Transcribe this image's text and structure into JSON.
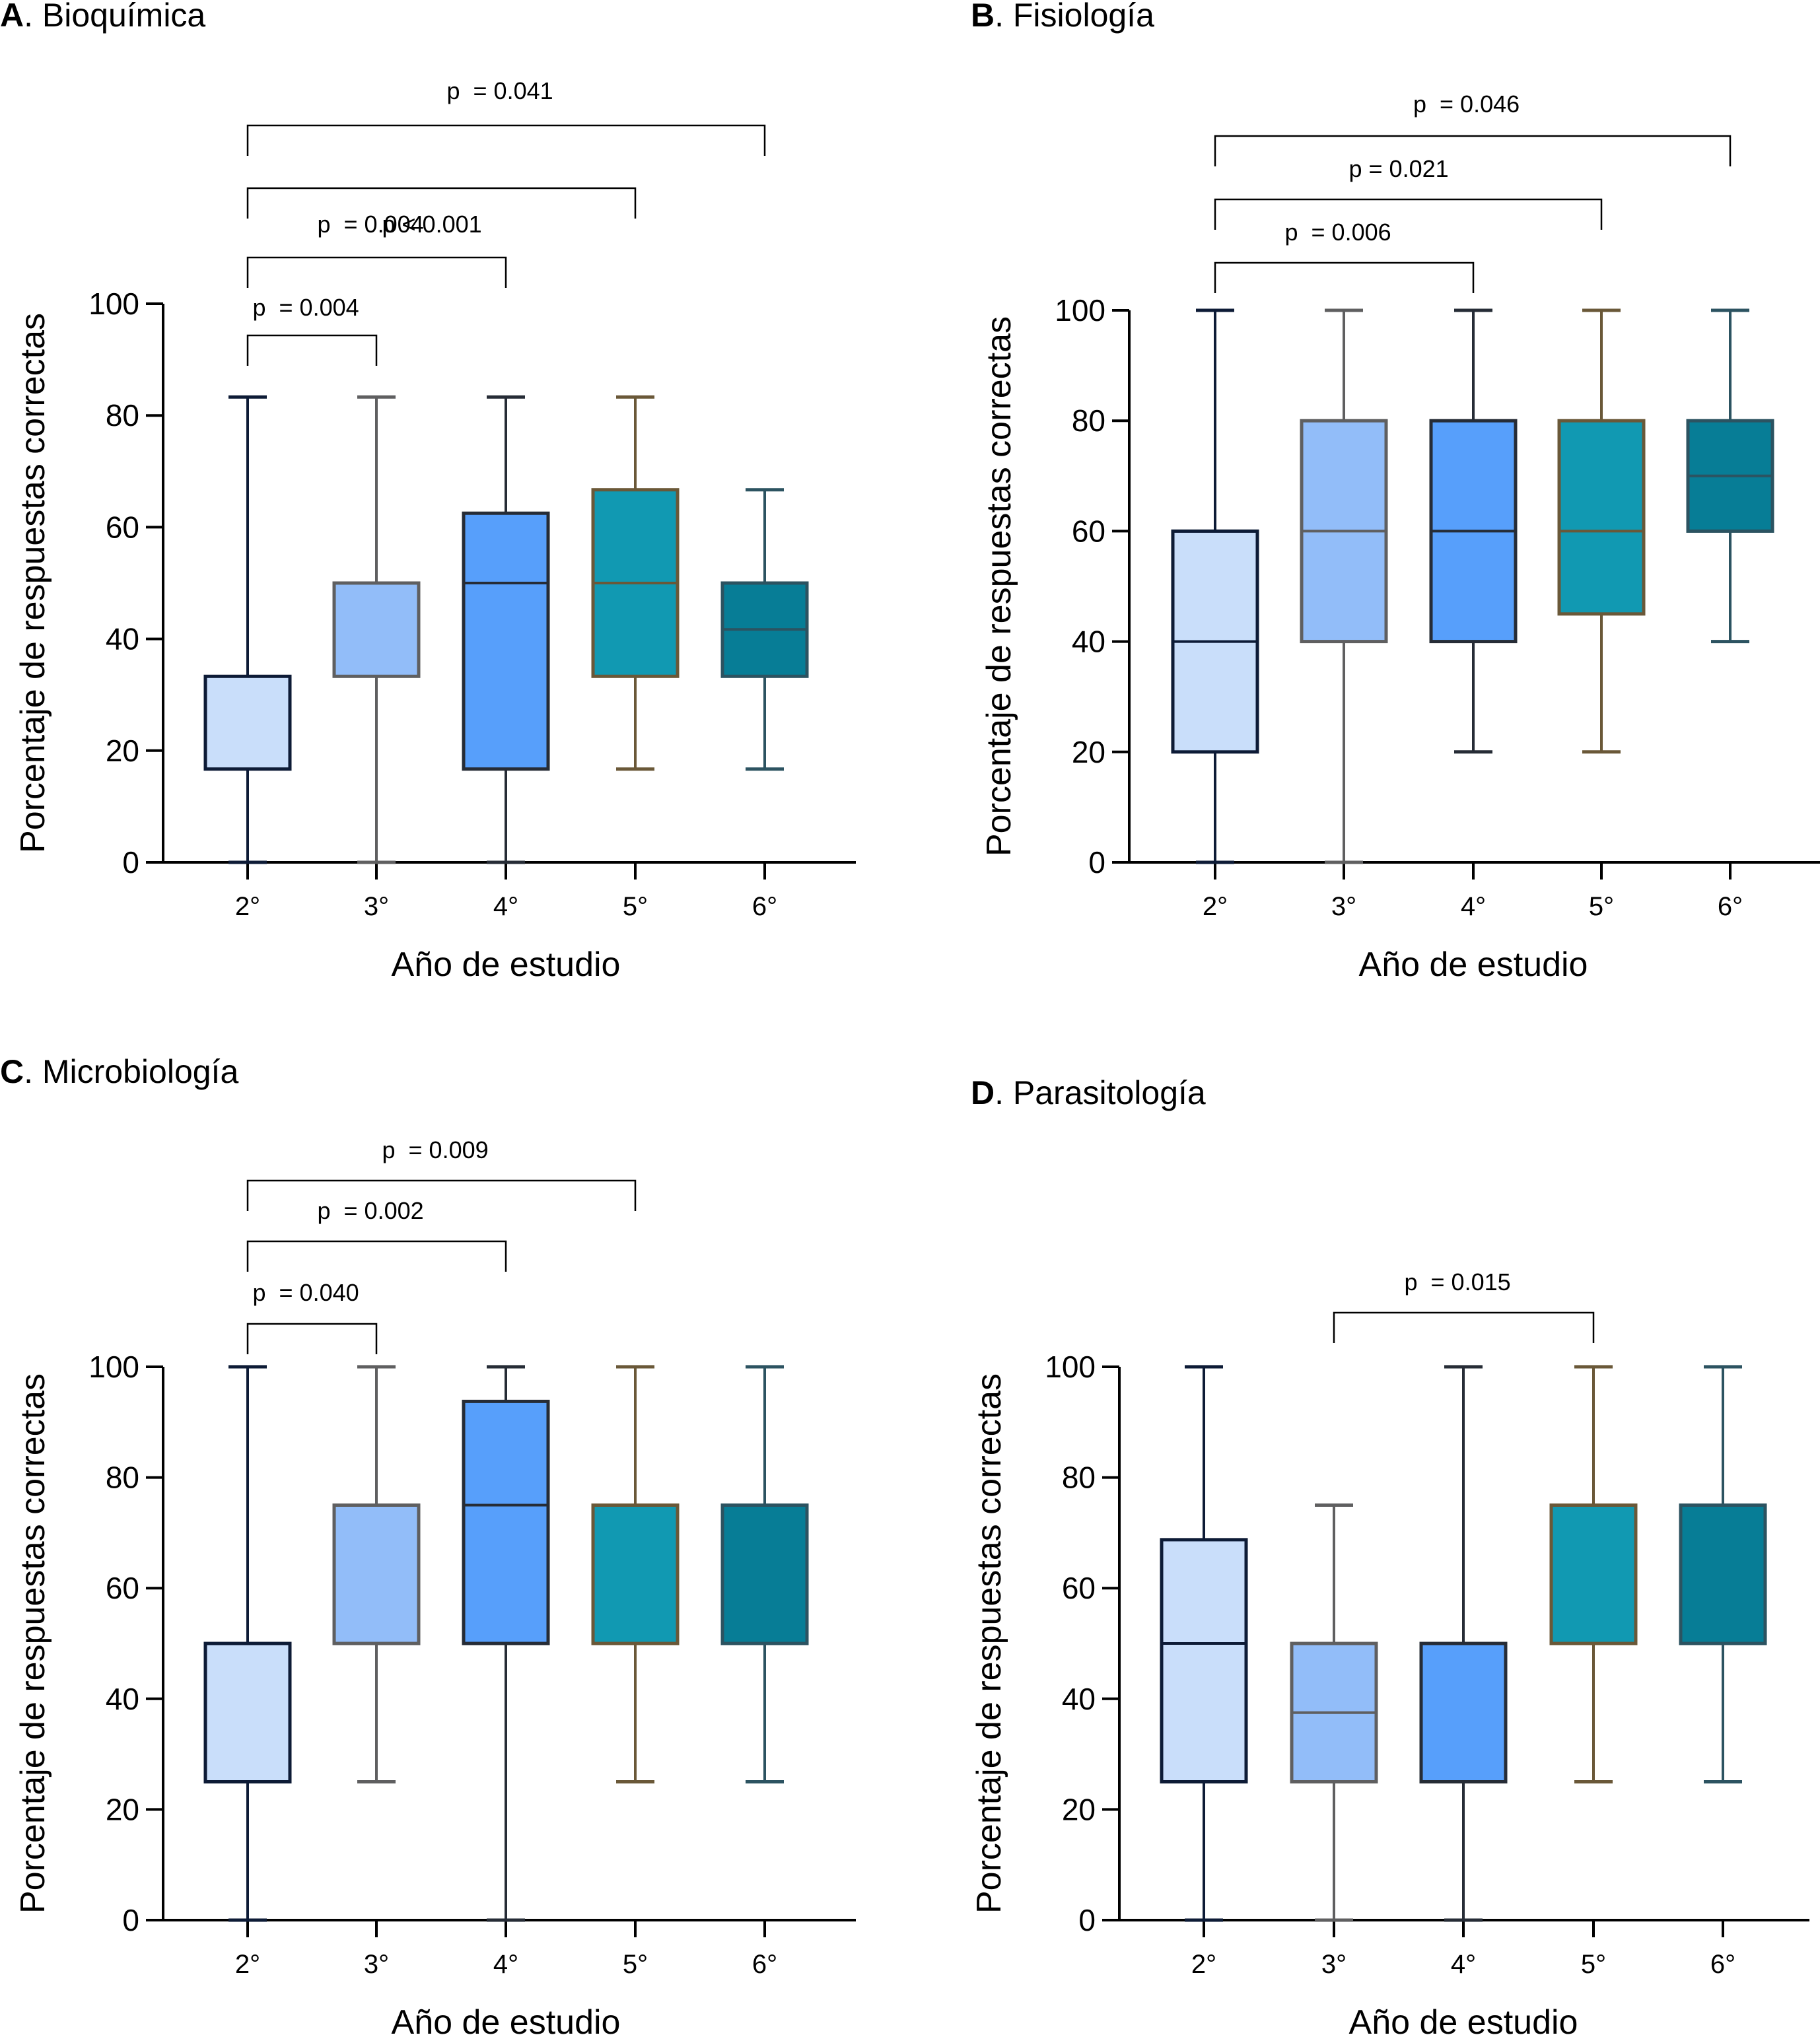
{
  "figure": {
    "y_axis_label": "Porcentaje de respuestas correctas",
    "x_axis_label": "Año de estudio",
    "categories": [
      "2°",
      "3°",
      "4°",
      "5°",
      "6°"
    ],
    "y_ticks": [
      0,
      20,
      40,
      60,
      80,
      100
    ],
    "box_styles": [
      {
        "fill": "#c9defa",
        "stroke": "#0d1b36"
      },
      {
        "fill": "#92bdf9",
        "stroke": "#5f5f60"
      },
      {
        "fill": "#579ffb",
        "stroke": "#262c36"
      },
      {
        "fill": "#1199b2",
        "stroke": "#6a5838"
      },
      {
        "fill": "#077d96",
        "stroke": "#2c5361"
      }
    ]
  },
  "chart_data": [
    {
      "type": "box",
      "panel_letter": "A",
      "title": "Bioquímica",
      "xlabel": "Año de estudio",
      "ylabel": "Porcentaje de respuestas correctas",
      "ylim": [
        0,
        100
      ],
      "categories": [
        "2°",
        "3°",
        "4°",
        "5°",
        "6°"
      ],
      "boxes": [
        {
          "min": 0,
          "q1": 16.7,
          "median": 16.7,
          "q3": 33.3,
          "max": 83.3
        },
        {
          "min": 0,
          "q1": 33.3,
          "median": 33.3,
          "q3": 50,
          "max": 83.3
        },
        {
          "min": 0,
          "q1": 16.7,
          "median": 50,
          "q3": 62.5,
          "max": 83.3
        },
        {
          "min": 16.7,
          "q1": 33.3,
          "median": 50,
          "q3": 66.7,
          "max": 83.3
        },
        {
          "min": 16.7,
          "q1": 33.3,
          "median": 41.7,
          "q3": 50,
          "max": 66.7
        }
      ],
      "comparisons": [
        {
          "from": "2°",
          "to": "3°",
          "label": "p  = 0.004"
        },
        {
          "from": "2°",
          "to": "4°",
          "label": "p  = 0.004"
        },
        {
          "from": "2°",
          "to": "5°",
          "label": "p < 0.001"
        },
        {
          "from": "2°",
          "to": "6°",
          "label": "p  = 0.041"
        }
      ]
    },
    {
      "type": "box",
      "panel_letter": "B",
      "title": "Fisiología",
      "xlabel": "Año de estudio",
      "ylabel": "Porcentaje de respuestas correctas",
      "ylim": [
        0,
        100
      ],
      "categories": [
        "2°",
        "3°",
        "4°",
        "5°",
        "6°"
      ],
      "boxes": [
        {
          "min": 0,
          "q1": 20,
          "median": 40,
          "q3": 60,
          "max": 100
        },
        {
          "min": 0,
          "q1": 40,
          "median": 60,
          "q3": 80,
          "max": 100
        },
        {
          "min": 20,
          "q1": 40,
          "median": 60,
          "q3": 80,
          "max": 100
        },
        {
          "min": 20,
          "q1": 45,
          "median": 60,
          "q3": 80,
          "max": 100
        },
        {
          "min": 40,
          "q1": 60,
          "median": 70,
          "q3": 80,
          "max": 100
        }
      ],
      "comparisons": [
        {
          "from": "2°",
          "to": "4°",
          "label": "p  = 0.006"
        },
        {
          "from": "2°",
          "to": "5°",
          "label": "p = 0.021"
        },
        {
          "from": "2°",
          "to": "6°",
          "label": "p  = 0.046"
        }
      ]
    },
    {
      "type": "box",
      "panel_letter": "C",
      "title": "Microbiología",
      "xlabel": "Año de estudio",
      "ylabel": "Porcentaje de respuestas correctas",
      "ylim": [
        0,
        100
      ],
      "categories": [
        "2°",
        "3°",
        "4°",
        "5°",
        "6°"
      ],
      "boxes": [
        {
          "min": 0,
          "q1": 25,
          "median": 50,
          "q3": 50,
          "max": 100
        },
        {
          "min": 25,
          "q1": 50,
          "median": 50,
          "q3": 75,
          "max": 100
        },
        {
          "min": 0,
          "q1": 50,
          "median": 75,
          "q3": 93.75,
          "max": 100
        },
        {
          "min": 25,
          "q1": 50,
          "median": 75,
          "q3": 75,
          "max": 100
        },
        {
          "min": 25,
          "q1": 50,
          "median": 75,
          "q3": 75,
          "max": 100
        }
      ],
      "comparisons": [
        {
          "from": "2°",
          "to": "3°",
          "label": "p  = 0.040"
        },
        {
          "from": "2°",
          "to": "4°",
          "label": "p  = 0.002"
        },
        {
          "from": "2°",
          "to": "5°",
          "label": "p  = 0.009"
        }
      ]
    },
    {
      "type": "box",
      "panel_letter": "D",
      "title": "Parasitología",
      "xlabel": "Año de estudio",
      "ylabel": "Porcentaje de respuestas correctas",
      "ylim": [
        0,
        100
      ],
      "categories": [
        "2°",
        "3°",
        "4°",
        "5°",
        "6°"
      ],
      "boxes": [
        {
          "min": 0,
          "q1": 25,
          "median": 50,
          "q3": 68.75,
          "max": 100
        },
        {
          "min": 0,
          "q1": 25,
          "median": 37.5,
          "q3": 50,
          "max": 75
        },
        {
          "min": 0,
          "q1": 25,
          "median": 50,
          "q3": 50,
          "max": 100
        },
        {
          "min": 25,
          "q1": 50,
          "median": 50,
          "q3": 75,
          "max": 100
        },
        {
          "min": 25,
          "q1": 50,
          "median": 75,
          "q3": 75,
          "max": 100
        }
      ],
      "comparisons": [
        {
          "from": "3°",
          "to": "5°",
          "label": "p  = 0.015"
        }
      ]
    }
  ]
}
